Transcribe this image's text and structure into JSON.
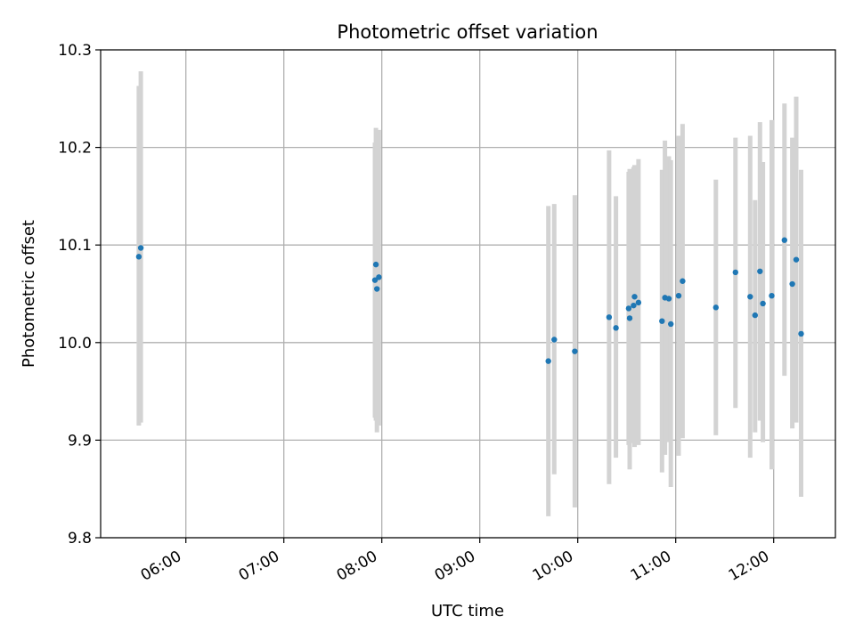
{
  "chart_data": {
    "type": "scatter",
    "title": "Photometric offset variation",
    "xlabel": "UTC time",
    "ylabel": "Photometric offset",
    "x_units": "hours UTC",
    "xlim": [
      5.13,
      12.63
    ],
    "ylim": [
      9.8,
      10.3
    ],
    "x_ticks": [
      {
        "value": 6,
        "label": "06:00"
      },
      {
        "value": 7,
        "label": "07:00"
      },
      {
        "value": 8,
        "label": "08:00"
      },
      {
        "value": 9,
        "label": "09:00"
      },
      {
        "value": 10,
        "label": "10:00"
      },
      {
        "value": 11,
        "label": "11:00"
      },
      {
        "value": 12,
        "label": "12:00"
      }
    ],
    "y_ticks": [
      {
        "value": 9.8,
        "label": "9.8"
      },
      {
        "value": 9.9,
        "label": "9.9"
      },
      {
        "value": 10.0,
        "label": "10.0"
      },
      {
        "value": 10.1,
        "label": "10.1"
      },
      {
        "value": 10.2,
        "label": "10.2"
      },
      {
        "value": 10.3,
        "label": "10.3"
      }
    ],
    "grid": true,
    "colors": {
      "points": "#1f77b4",
      "errorbars": "#d3d3d3",
      "grid": "#b0b0b0"
    },
    "points": [
      {
        "x": 5.52,
        "y": 10.088,
        "err_lo": 9.915,
        "err_hi": 10.263
      },
      {
        "x": 5.54,
        "y": 10.097,
        "err_lo": 9.918,
        "err_hi": 10.278
      },
      {
        "x": 7.93,
        "y": 10.064,
        "err_lo": 9.923,
        "err_hi": 10.205
      },
      {
        "x": 7.94,
        "y": 10.08,
        "err_lo": 9.92,
        "err_hi": 10.22
      },
      {
        "x": 7.95,
        "y": 10.055,
        "err_lo": 9.908,
        "err_hi": 10.202
      },
      {
        "x": 7.97,
        "y": 10.067,
        "err_lo": 9.915,
        "err_hi": 10.218
      },
      {
        "x": 9.7,
        "y": 9.981,
        "err_lo": 9.822,
        "err_hi": 10.14
      },
      {
        "x": 9.76,
        "y": 10.003,
        "err_lo": 9.865,
        "err_hi": 10.142
      },
      {
        "x": 9.97,
        "y": 9.991,
        "err_lo": 9.831,
        "err_hi": 10.151
      },
      {
        "x": 10.32,
        "y": 10.026,
        "err_lo": 9.855,
        "err_hi": 10.197
      },
      {
        "x": 10.39,
        "y": 10.015,
        "err_lo": 9.882,
        "err_hi": 10.15
      },
      {
        "x": 10.52,
        "y": 10.035,
        "err_lo": 9.895,
        "err_hi": 10.175
      },
      {
        "x": 10.53,
        "y": 10.025,
        "err_lo": 9.87,
        "err_hi": 10.178
      },
      {
        "x": 10.57,
        "y": 10.038,
        "err_lo": 9.897,
        "err_hi": 10.18
      },
      {
        "x": 10.58,
        "y": 10.047,
        "err_lo": 9.893,
        "err_hi": 10.182
      },
      {
        "x": 10.62,
        "y": 10.041,
        "err_lo": 9.895,
        "err_hi": 10.188
      },
      {
        "x": 10.86,
        "y": 10.022,
        "err_lo": 9.867,
        "err_hi": 10.177
      },
      {
        "x": 10.89,
        "y": 10.046,
        "err_lo": 9.885,
        "err_hi": 10.207
      },
      {
        "x": 10.93,
        "y": 10.045,
        "err_lo": 9.898,
        "err_hi": 10.191
      },
      {
        "x": 10.95,
        "y": 10.019,
        "err_lo": 9.852,
        "err_hi": 10.187
      },
      {
        "x": 11.03,
        "y": 10.048,
        "err_lo": 9.884,
        "err_hi": 10.212
      },
      {
        "x": 11.07,
        "y": 10.063,
        "err_lo": 9.902,
        "err_hi": 10.224
      },
      {
        "x": 11.41,
        "y": 10.036,
        "err_lo": 9.905,
        "err_hi": 10.167
      },
      {
        "x": 11.61,
        "y": 10.072,
        "err_lo": 9.933,
        "err_hi": 10.21
      },
      {
        "x": 11.76,
        "y": 10.047,
        "err_lo": 9.882,
        "err_hi": 10.212
      },
      {
        "x": 11.81,
        "y": 10.028,
        "err_lo": 9.908,
        "err_hi": 10.146
      },
      {
        "x": 11.86,
        "y": 10.073,
        "err_lo": 9.92,
        "err_hi": 10.226
      },
      {
        "x": 11.89,
        "y": 10.04,
        "err_lo": 9.898,
        "err_hi": 10.185
      },
      {
        "x": 11.98,
        "y": 10.048,
        "err_lo": 9.87,
        "err_hi": 10.228
      },
      {
        "x": 12.11,
        "y": 10.105,
        "err_lo": 9.966,
        "err_hi": 10.245
      },
      {
        "x": 12.19,
        "y": 10.06,
        "err_lo": 9.912,
        "err_hi": 10.21
      },
      {
        "x": 12.23,
        "y": 10.085,
        "err_lo": 9.918,
        "err_hi": 10.252
      },
      {
        "x": 12.28,
        "y": 10.009,
        "err_lo": 9.842,
        "err_hi": 10.177
      }
    ]
  }
}
